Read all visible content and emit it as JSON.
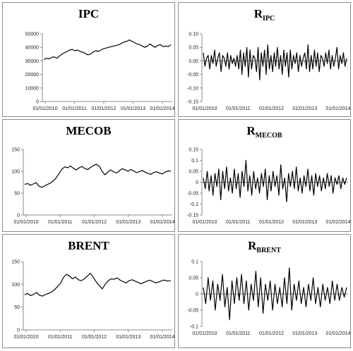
{
  "chart_data": [
    {
      "type": "line",
      "title": "IPC",
      "title_main": "IPC",
      "title_sub": "",
      "y_ticks": [
        "50000",
        "40000",
        "30000",
        "20000",
        "10000",
        "0"
      ],
      "ylim": [
        0,
        50000
      ],
      "x_ticks": [
        "01/01/2010",
        "01/01/2011",
        "01/01/2012",
        "01/01/2013",
        "01/01/2014"
      ],
      "series": [
        {
          "values": [
            31000,
            32000,
            31500,
            32500,
            33000,
            32000,
            33500,
            35000,
            36000,
            37000,
            38000,
            38500,
            37500,
            38000,
            37000,
            36500,
            35500,
            34500,
            35000,
            36500,
            37500,
            37000,
            38000,
            39000,
            39500,
            40000,
            40500,
            41000,
            41500,
            42000,
            43000,
            44000,
            44500,
            45500,
            44500,
            43500,
            42500,
            42000,
            41000,
            40000,
            41000,
            42500,
            41000,
            40000,
            41500,
            42000,
            40500,
            41000,
            40500,
            42000
          ]
        }
      ]
    },
    {
      "type": "line",
      "title": "RIPC",
      "title_main": "R",
      "title_sub": "IPC",
      "y_ticks": [
        "0.10",
        "0.05",
        "0.00",
        "-0.05",
        "-0.10",
        "-0.15"
      ],
      "ylim": [
        -0.15,
        0.1
      ],
      "x_ticks": [
        "01/01/2010",
        "01/01/2011",
        "01/01/2012",
        "01/01/2013",
        "01/01/2014"
      ],
      "series": [
        {
          "values": [
            0.03,
            -0.02,
            0.01,
            0.02,
            -0.03,
            0.02,
            -0.01,
            0.04,
            -0.02,
            0.01,
            0.03,
            -0.04,
            0.02,
            0.01,
            -0.02,
            0.03,
            -0.03,
            0.02,
            -0.01,
            0.01,
            -0.02,
            0.02,
            -0.03,
            0.04,
            -0.05,
            0.03,
            -0.02,
            0.05,
            -0.06,
            0.04,
            -0.03,
            0.02,
            0.01,
            -0.04,
            0.05,
            -0.07,
            0.03,
            -0.02,
            0.04,
            -0.05,
            0.06,
            -0.03,
            0.02,
            -0.04,
            0.03,
            -0.02,
            0.05,
            -0.03,
            0.02,
            -0.05,
            0.04,
            -0.02,
            0.03,
            -0.06,
            0.04,
            -0.03,
            0.02,
            -0.01,
            0.03,
            -0.04,
            0.02,
            -0.02,
            0.01,
            0.03,
            -0.03,
            0.06,
            -0.04,
            0.02,
            -0.03,
            0.04,
            -0.02,
            0.03,
            -0.04,
            0.02,
            0.01,
            -0.02,
            0.03,
            -0.01,
            0.04,
            -0.03,
            0.02,
            -0.02,
            0.01,
            0.05,
            -0.03,
            0.02,
            -0.01,
            0.03,
            -0.02,
            0.01
          ]
        }
      ]
    },
    {
      "type": "line",
      "title": "MECOB",
      "title_main": "MECOB",
      "title_sub": "",
      "y_ticks": [
        "150",
        "100",
        "50",
        "0"
      ],
      "ylim": [
        0,
        150
      ],
      "x_ticks": [
        "01/01/2010",
        "01/01/2011",
        "01/01/2012",
        "01/01/2013",
        "01/01/2014"
      ],
      "series": [
        {
          "values": [
            70,
            72,
            68,
            71,
            74,
            66,
            63,
            67,
            70,
            73,
            78,
            85,
            95,
            105,
            110,
            108,
            112,
            107,
            103,
            108,
            111,
            106,
            104,
            109,
            113,
            116,
            112,
            100,
            92,
            98,
            103,
            99,
            96,
            101,
            106,
            103,
            100,
            104,
            101,
            97,
            99,
            102,
            98,
            95,
            93,
            97,
            99,
            96,
            94,
            98,
            101,
            100
          ]
        }
      ]
    },
    {
      "type": "line",
      "title": "RMECOB",
      "title_main": "R",
      "title_sub": "MECOB",
      "y_ticks": [
        "0.15",
        "0.1",
        "0.05",
        "0",
        "-0.05",
        "-0.1",
        "-0.15"
      ],
      "ylim": [
        -0.15,
        0.15
      ],
      "x_ticks": [
        "01/01/2010",
        "01/01/2011",
        "01/01/2012",
        "01/01/2013",
        "01/01/2014"
      ],
      "series": [
        {
          "values": [
            0.02,
            -0.03,
            0.05,
            -0.04,
            0.03,
            -0.06,
            0.04,
            -0.02,
            0.06,
            -0.08,
            0.05,
            -0.03,
            0.07,
            -0.04,
            0.02,
            -0.05,
            0.06,
            -0.03,
            0.04,
            -0.07,
            0.05,
            -0.02,
            0.1,
            -0.04,
            0.03,
            -0.06,
            0.05,
            -0.03,
            0.02,
            -0.05,
            0.04,
            -0.02,
            0.06,
            -0.08,
            0.03,
            -0.04,
            0.05,
            -0.02,
            0.03,
            -0.06,
            0.08,
            -0.03,
            0.02,
            -0.09,
            0.04,
            -0.02,
            0.05,
            -0.03,
            0.07,
            -0.04,
            0.02,
            -0.05,
            0.03,
            -0.02,
            0.06,
            -0.04,
            0.03,
            -0.06,
            0.04,
            -0.02,
            0.03,
            -0.04,
            0.02,
            -0.03,
            0.04,
            -0.02,
            0.03,
            -0.05,
            0.02,
            -0.01,
            0.03,
            -0.03,
            0.02,
            -0.01,
            0.02
          ]
        }
      ]
    },
    {
      "type": "line",
      "title": "BRENT",
      "title_main": "BRENT",
      "title_sub": "",
      "y_ticks": [
        "150",
        "100",
        "50",
        "0"
      ],
      "ylim": [
        0,
        150
      ],
      "x_ticks": [
        "01/01/2010",
        "01/01/2011",
        "01/01/2012",
        "01/01/2013",
        "01/01/2014"
      ],
      "series": [
        {
          "values": [
            77,
            80,
            75,
            78,
            82,
            76,
            74,
            78,
            80,
            83,
            88,
            95,
            102,
            115,
            122,
            118,
            112,
            116,
            110,
            108,
            112,
            118,
            124,
            115,
            105,
            97,
            90,
            100,
            108,
            112,
            111,
            114,
            109,
            106,
            103,
            108,
            110,
            107,
            104,
            101,
            104,
            107,
            109,
            106,
            103,
            105,
            108,
            109,
            107,
            108
          ]
        }
      ]
    },
    {
      "type": "line",
      "title": "RBRENT",
      "title_main": "R",
      "title_sub": "BRENT",
      "y_ticks": [
        "0.1",
        "0.05",
        "0",
        "-0.05",
        "-0.1"
      ],
      "ylim": [
        -0.1,
        0.1
      ],
      "x_ticks": [
        "01/01/2010",
        "01/01/2011",
        "01/01/2012",
        "01/01/2013",
        "01/01/2014"
      ],
      "series": [
        {
          "values": [
            0.02,
            -0.03,
            0.05,
            -0.02,
            0.04,
            -0.05,
            0.03,
            -0.02,
            0.06,
            -0.04,
            0.02,
            -0.08,
            0.04,
            -0.03,
            0.05,
            -0.02,
            0.06,
            -0.03,
            0.04,
            -0.05,
            0.03,
            -0.02,
            0.07,
            -0.04,
            0.05,
            -0.06,
            0.03,
            -0.02,
            0.04,
            -0.05,
            0.03,
            -0.03,
            0.02,
            -0.04,
            0.05,
            -0.03,
            0.08,
            -0.05,
            0.03,
            -0.02,
            0.04,
            -0.03,
            0.02,
            -0.04,
            0.03,
            -0.02,
            0.05,
            -0.03,
            0.02,
            -0.04,
            0.03,
            -0.02,
            0.02,
            -0.03,
            0.04,
            -0.02,
            0.03,
            -0.02,
            0.02,
            -0.01,
            0.02
          ]
        }
      ]
    }
  ]
}
